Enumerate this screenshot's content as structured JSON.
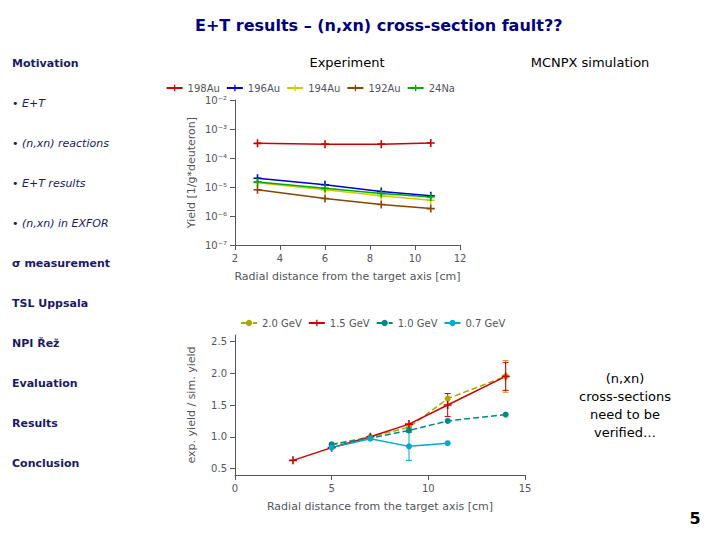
{
  "title": "E+T results – (n,xn) cross-section fault??",
  "sidebar": [
    "Motivation",
    "• E+T",
    "• (n,xn) reactions",
    "• E+T results",
    "• (n,xn) in EXFOR",
    "σ measurement",
    "TSL Uppsala",
    "NPI Řež",
    "Evaluation",
    "Results",
    "Conclusion"
  ],
  "annotations": [
    "Experiment",
    "MCNPX simulation",
    "(n,xn)\ncross-sections\nneed to be\nverified…",
    "5"
  ],
  "chart_data": [
    {
      "type": "line",
      "log": "y",
      "xlabel": "Radial distance from the target axis [cm]",
      "ylabel": "Yield [1/g*deuteron]",
      "x": [
        3.0,
        6.0,
        8.5,
        10.7
      ],
      "xlim": [
        2,
        12
      ],
      "xticks": [
        2,
        4,
        6,
        8,
        10,
        12
      ],
      "ylim": [
        1e-07,
        0.01
      ],
      "yticks": [
        {
          "value": 1e-07,
          "label": "10⁻⁷"
        },
        {
          "value": 1e-06,
          "label": "10⁻⁶"
        },
        {
          "value": 1e-05,
          "label": "10⁻⁵"
        },
        {
          "value": 0.0001,
          "label": "10⁻⁴"
        },
        {
          "value": 0.001,
          "label": "10⁻³"
        },
        {
          "value": 0.01,
          "label": "10⁻²"
        }
      ],
      "grid": false,
      "legend": "upper right",
      "series": [
        {
          "name": "198Au",
          "color": "#cc0000",
          "marker": "plus",
          "line_style": "solid",
          "values": [
            0.00032,
            0.0003,
            0.0003,
            0.00033
          ]
        },
        {
          "name": "196Au",
          "color": "#0000cc",
          "marker": "plus",
          "line_style": "solid",
          "values": [
            2e-05,
            1.2e-05,
            7e-06,
            5e-06
          ]
        },
        {
          "name": "194Au",
          "color": "#cccc00",
          "marker": "plus",
          "line_style": "solid",
          "values": [
            1.4e-05,
            8e-06,
            5e-06,
            3.5e-06
          ]
        },
        {
          "name": "192Au",
          "color": "#884400",
          "marker": "plus",
          "line_style": "solid",
          "values": [
            8e-06,
            4e-06,
            2.5e-06,
            1.8e-06
          ]
        },
        {
          "name": "24Na",
          "color": "#00aa00",
          "marker": "plus",
          "line_style": "solid",
          "values": [
            1.5e-05,
            9e-06,
            6e-06,
            4.5e-06
          ]
        }
      ]
    },
    {
      "type": "line",
      "xlabel": "Radial distance from the target axis [cm]",
      "ylabel": "exp. yield / sim. yield",
      "xlim": [
        0,
        15
      ],
      "xticks": [
        0,
        5,
        10,
        15
      ],
      "ylim": [
        0.4,
        2.6
      ],
      "yticks": [
        0.5,
        {
          "value": 1.0,
          "label": "1.0"
        },
        1.5,
        {
          "value": 2.0,
          "label": "2.0"
        },
        2.5
      ],
      "grid": false,
      "legend": "upper left",
      "series": [
        {
          "name": "2.0 GeV",
          "color": "#aaaa00",
          "marker": "circle",
          "line_style": "dashed",
          "x": [
            5,
            7,
            9,
            11,
            14
          ],
          "values": [
            0.88,
            1.0,
            1.15,
            1.6,
            1.95
          ],
          "errors": [
            null,
            null,
            null,
            null,
            0.25
          ]
        },
        {
          "name": "1.5 GeV",
          "color": "#cc0000",
          "marker": "plus",
          "line_style": "solid",
          "x": [
            3,
            5,
            7,
            9,
            11,
            14
          ],
          "values": [
            0.63,
            0.83,
            1.0,
            1.2,
            1.5,
            1.95
          ],
          "errors": [
            null,
            null,
            null,
            null,
            0.18,
            0.22
          ]
        },
        {
          "name": "1.0 GeV",
          "color": "#008888",
          "marker": "circle",
          "line_style": "dashed",
          "x": [
            5,
            7,
            9,
            11,
            14
          ],
          "values": [
            0.88,
            0.98,
            1.1,
            1.25,
            1.35
          ]
        },
        {
          "name": "0.7 GeV",
          "color": "#00aacc",
          "marker": "circle",
          "line_style": "solid",
          "x": [
            5,
            7,
            9,
            11
          ],
          "values": [
            0.83,
            0.97,
            0.85,
            0.9
          ],
          "errors": [
            null,
            null,
            0.22,
            null
          ]
        }
      ]
    }
  ]
}
